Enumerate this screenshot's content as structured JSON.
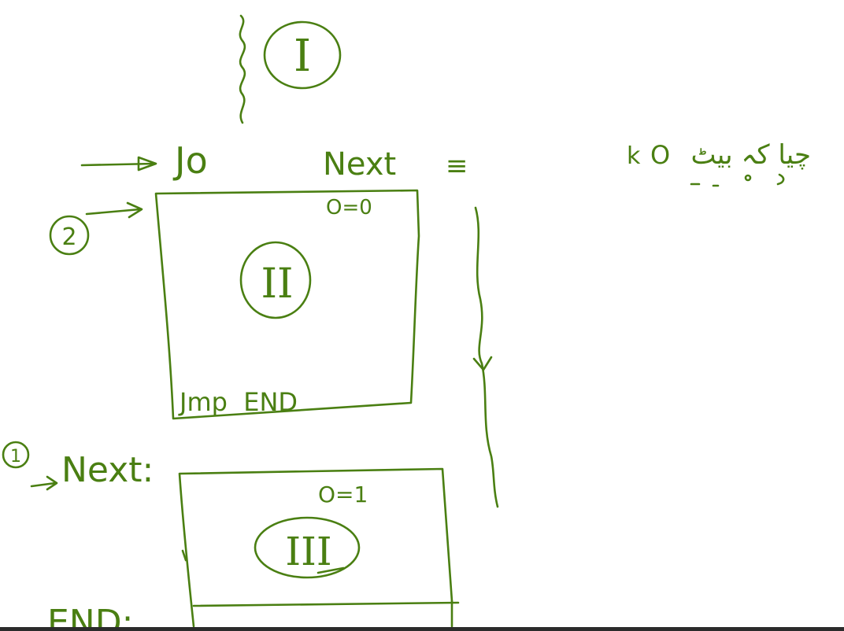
{
  "colors": {
    "ink": "#4a7f12",
    "background": "#ffffff",
    "bottom_rule": "#2b2b2b"
  },
  "diagram": {
    "section_top": {
      "roman": "I"
    },
    "jump_line": {
      "instruction": "Jo",
      "target": "Next",
      "equiv_symbol": "≡",
      "persian_note": "چیا کہ بیٹ",
      "flag_condition": "O",
      "flag_prefix": "k"
    },
    "marker_two": {
      "label": "2"
    },
    "block_two": {
      "flag": "O=0",
      "roman": "II",
      "footer": "Jmp  END"
    },
    "marker_one": {
      "label": "1"
    },
    "next_label": "Next:",
    "block_three": {
      "flag": "O=1",
      "roman": "III"
    },
    "end_label": "END:"
  }
}
